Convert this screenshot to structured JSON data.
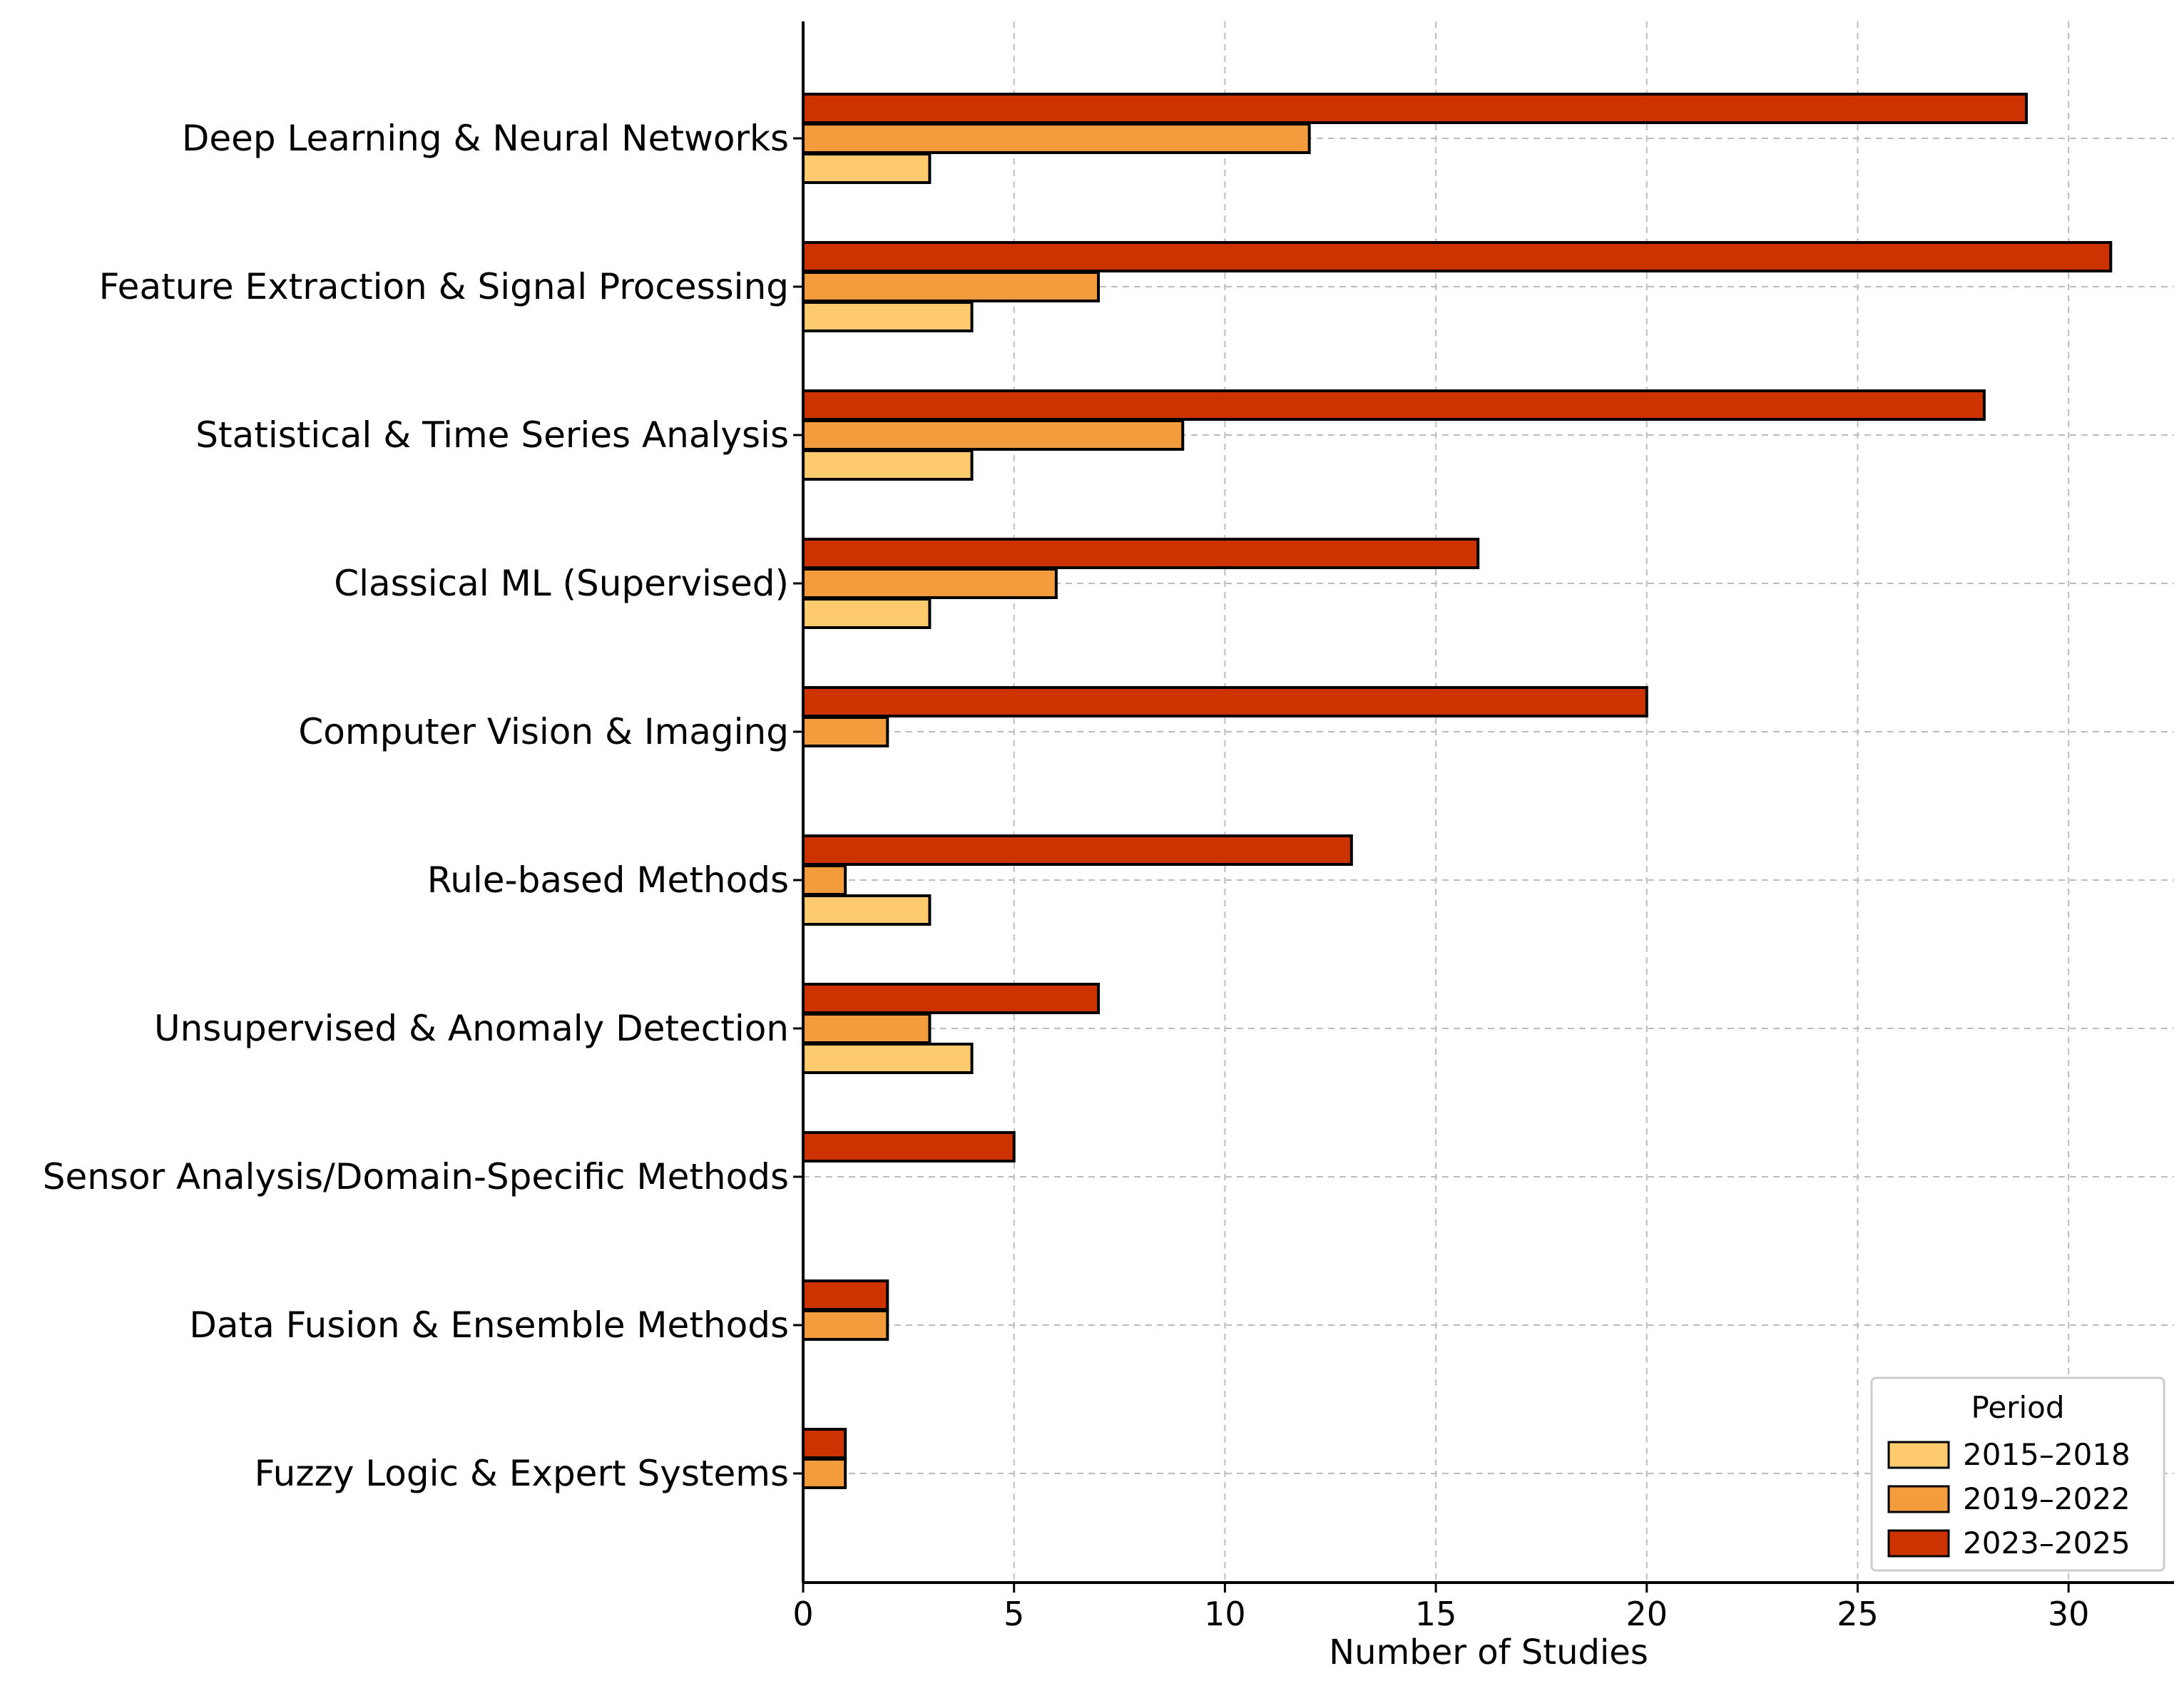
{
  "chart_data": {
    "type": "bar",
    "orientation": "horizontal",
    "title": "",
    "xlabel": "Number of Studies",
    "ylabel": "",
    "xlim": [
      0,
      32.5
    ],
    "xticks": [
      0,
      5,
      10,
      15,
      20,
      25,
      30
    ],
    "grid": true,
    "categories": [
      "Deep Learning & Neural Networks",
      "Feature Extraction & Signal Processing",
      "Statistical & Time Series Analysis",
      "Classical ML (Supervised)",
      "Computer Vision & Imaging",
      "Rule-based Methods",
      "Unsupervised & Anomaly Detection",
      "Sensor Analysis/Domain-Specific Methods",
      "Data Fusion & Ensemble Methods",
      "Fuzzy Logic & Expert Systems"
    ],
    "series": [
      {
        "name": "2015–2018",
        "color": "#fdcb6e",
        "values": [
          3,
          4,
          4,
          3,
          0,
          3,
          4,
          0,
          0,
          0
        ]
      },
      {
        "name": "2019–2022",
        "color": "#f39c3d",
        "values": [
          12,
          7,
          9,
          6,
          2,
          1,
          3,
          0,
          2,
          1
        ]
      },
      {
        "name": "2023–2025",
        "color": "#cc3300",
        "values": [
          29,
          31,
          28,
          16,
          20,
          13,
          7,
          5,
          2,
          1
        ]
      }
    ],
    "legend": {
      "title": "Period",
      "position": "bottom-right"
    }
  }
}
